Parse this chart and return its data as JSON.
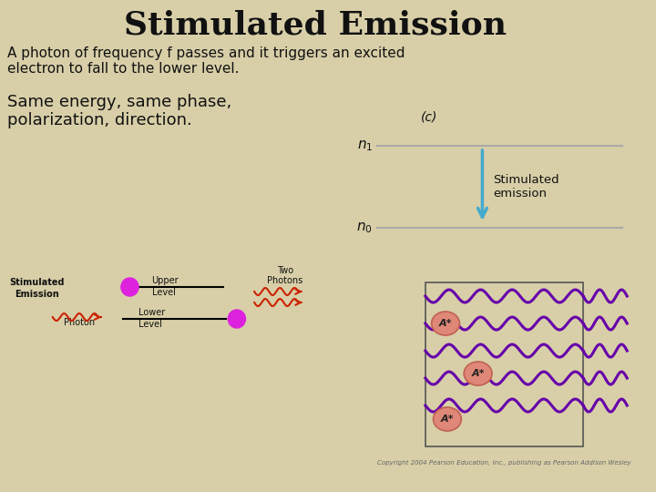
{
  "title": "Stimulated Emission",
  "subtitle_line1": "A photon of frequency f passes and it triggers an excited",
  "subtitle_line2": "electron to fall to the lower level.",
  "text2_line1": "Same energy, same phase,",
  "text2_line2": "polarization, direction.",
  "bg_color": "#d8cfa8",
  "title_color": "#111111",
  "text_color": "#111111",
  "diagram_label_c": "(c)",
  "arrow_color": "#44aacc",
  "level_color": "#999999",
  "photon_wave_color": "#cc2200",
  "electron_color": "#dd22dd",
  "box_wave_color": "#6600aa",
  "atom_fill_color": "#e08878",
  "atom_edge_color": "#c06050",
  "copyright_text": "Copyright 2004 Pearson Education, Inc., publishing as Pearson Addison Wesley",
  "title_fontsize": 26,
  "body_fontsize": 11,
  "text2_fontsize": 13
}
